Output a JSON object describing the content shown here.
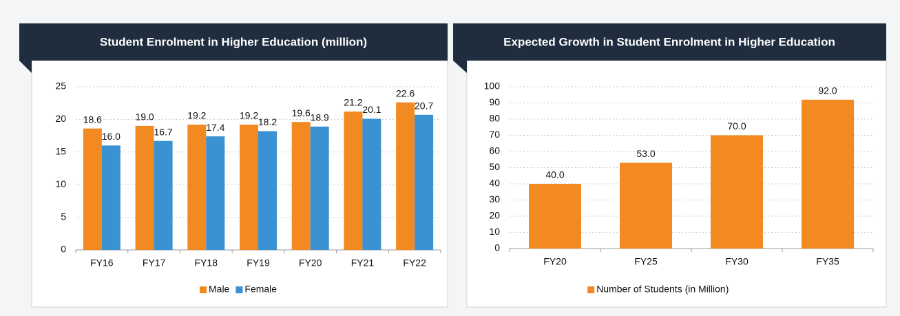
{
  "chart_data": [
    {
      "type": "bar",
      "title": "Student Enrolment in Higher Education (million)",
      "categories": [
        "FY16",
        "FY17",
        "FY18",
        "FY19",
        "FY20",
        "FY21",
        "FY22"
      ],
      "series": [
        {
          "name": "Male",
          "color": "#f28a21",
          "values": [
            18.6,
            19.0,
            19.2,
            19.2,
            19.6,
            21.2,
            22.6
          ],
          "value_labels": [
            "18.6",
            "19.0",
            "19.2",
            "19.2",
            "19.6",
            "21.2",
            "22.6"
          ]
        },
        {
          "name": "Female",
          "color": "#3a92d2",
          "values": [
            16.0,
            16.7,
            17.4,
            18.2,
            18.9,
            20.1,
            20.7
          ],
          "value_labels": [
            "16.0",
            "16.7",
            "17.4",
            "18.2",
            "18.9",
            "20.1",
            "20.7"
          ]
        }
      ],
      "ylim": [
        0,
        25
      ],
      "yticks": [
        0,
        5,
        10,
        15,
        20,
        25
      ],
      "grid": true,
      "legend": "bottom"
    },
    {
      "type": "bar",
      "title": "Expected Growth in Student Enrolment in Higher Education",
      "categories": [
        "FY20",
        "FY25",
        "FY30",
        "FY35"
      ],
      "series": [
        {
          "name": "Number of Students (in Million)",
          "color": "#f28a21",
          "values": [
            40.0,
            53.0,
            70.0,
            92.0
          ],
          "value_labels": [
            "40.0",
            "53.0",
            "70.0",
            "92.0"
          ]
        }
      ],
      "ylim": [
        0,
        100
      ],
      "yticks": [
        0,
        10,
        20,
        30,
        40,
        50,
        60,
        70,
        80,
        90,
        100
      ],
      "grid": true,
      "legend": "bottom"
    }
  ]
}
